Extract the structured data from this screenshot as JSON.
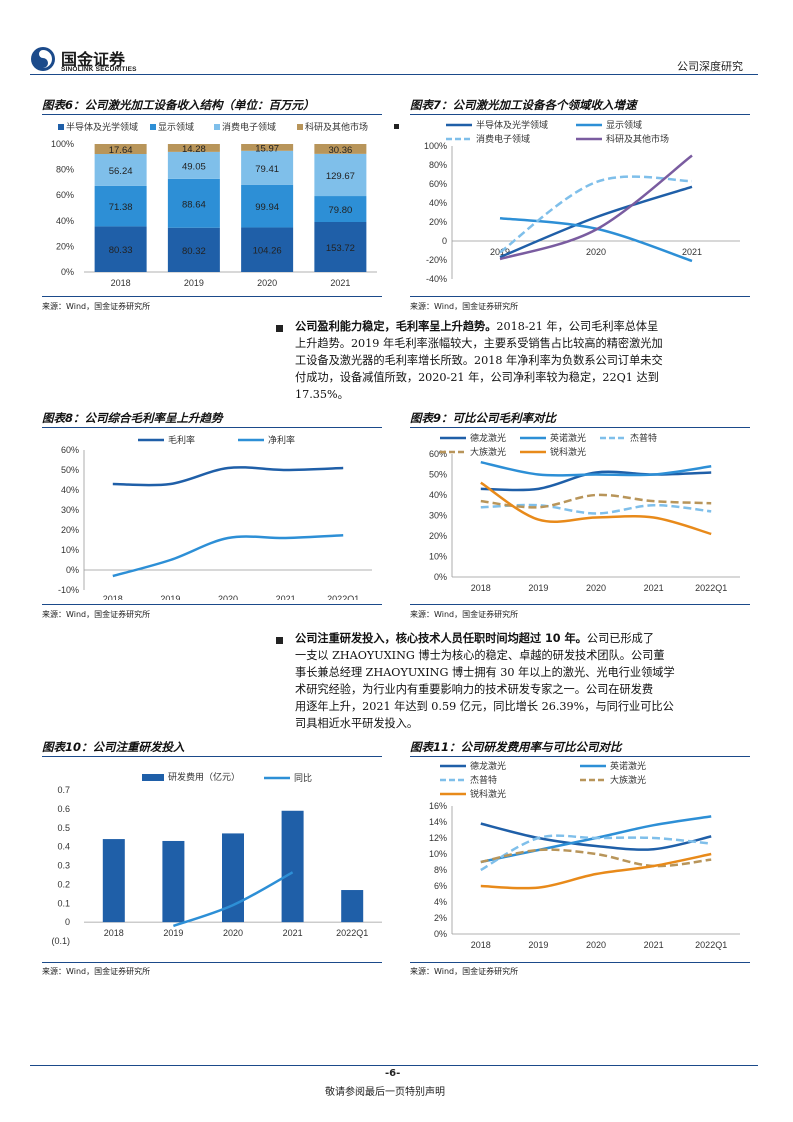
{
  "header": {
    "logo_cn": "国金证券",
    "logo_en": "SINOLINK SECURITIES",
    "doc_type": "公司深度研究"
  },
  "figures": {
    "fig6": {
      "title": "图表6：公司激光加工设备收入结构（单位：百万元）",
      "source": "来源：Wind，国金证券研究所"
    },
    "fig7": {
      "title": "图表7：公司激光加工设备各个领域收入增速",
      "source": "来源：Wind，国金证券研究所"
    },
    "fig8": {
      "title": "图表8：公司综合毛利率呈上升趋势",
      "source": "来源：Wind，国金证券研究所"
    },
    "fig9": {
      "title": "图表9：可比公司毛利率对比",
      "source": "来源：Wind，国金证券研究所"
    },
    "fig10": {
      "title": "图表10：公司注重研发投入",
      "source": "来源：Wind，国金证券研究所"
    },
    "fig11": {
      "title": "图表11：公司研发费用率与可比公司对比",
      "source": "来源：Wind，国金证券研究所"
    }
  },
  "paragraphs": {
    "p1_bold": "公司盈利能力稳定，毛利率呈上升趋势。",
    "p1_lines": [
      "2018-21 年，公司毛利率总体呈",
      "上升趋势。2019 年毛利率涨幅较大，主要系受销售占比较高的精密激光加",
      "工设备及激光器的毛利率增长所致。2018 年净利率为负数系公司订单未交",
      "付成功，设备减值所致，2020-21 年，公司净利率较为稳定，22Q1 达到",
      "17.35%。"
    ],
    "p2_bold": "公司注重研发投入，核心技术人员任职时间均超过 10 年。",
    "p2_lines": [
      "公司已形成了",
      "一支以 ZHAOYUXING 博士为核心的稳定、卓越的研发技术团队。公司董",
      "事长兼总经理 ZHAOYUXING 博士拥有 30 年以上的激光、光电行业领域学",
      "术研究经验，为行业内有重要影响力的技术研发专家之一。公司在研发费",
      "用逐年上升，2021 年达到 0.59 亿元，同比增长 26.39%，与同行业可比公",
      "司具相近水平研发投入。"
    ]
  },
  "footer": {
    "page": "-6-",
    "note": "敬请参阅最后一页特别声明"
  },
  "colors": {
    "brand_blue": "#1b4a8a",
    "dark_blue": "#1f5fa8",
    "mid_blue": "#2d8fd6",
    "light_blue": "#7fbfea",
    "tan": "#b8955a",
    "purple": "#7a5ca0",
    "orange": "#e88a1a"
  },
  "chart_data": [
    {
      "id": "fig6",
      "type": "bar",
      "stacked": true,
      "categories": [
        "2018",
        "2019",
        "2020",
        "2021"
      ],
      "series": [
        {
          "name": "半导体及光学领域",
          "values": [
            80.33,
            80.32,
            104.26,
            153.72
          ],
          "color": "#1f5fa8"
        },
        {
          "name": "显示领域",
          "values": [
            71.38,
            88.64,
            99.94,
            79.8
          ],
          "color": "#2d8fd6"
        },
        {
          "name": "消费电子领域",
          "values": [
            56.24,
            49.05,
            79.41,
            129.67
          ],
          "color": "#7fbfea"
        },
        {
          "name": "科研及其他市场",
          "values": [
            17.64,
            14.28,
            15.97,
            30.36
          ],
          "color": "#b8955a"
        }
      ],
      "yticks": [
        "0%",
        "20%",
        "40%",
        "60%",
        "80%",
        "100%"
      ],
      "legend_position": "top"
    },
    {
      "id": "fig7",
      "type": "line",
      "categories": [
        "2019",
        "2020",
        "2021"
      ],
      "series": [
        {
          "name": "半导体及光学领域",
          "values": [
            -0.17,
            0.25,
            0.57
          ],
          "color": "#1f5fa8",
          "dash": false
        },
        {
          "name": "显示领域",
          "values": [
            0.24,
            0.13,
            -0.21
          ],
          "color": "#2d8fd6",
          "dash": false
        },
        {
          "name": "消费电子领域",
          "values": [
            -0.12,
            0.62,
            0.63
          ],
          "color": "#7fbfea",
          "dash": true
        },
        {
          "name": "科研及其他市场",
          "values": [
            -0.19,
            0.12,
            0.9
          ],
          "color": "#7a5ca0",
          "dash": false
        }
      ],
      "ylim": [
        -0.4,
        1.0
      ],
      "yticks": [
        "-40%",
        "-20%",
        "0",
        "20%",
        "40%",
        "60%",
        "80%",
        "100%"
      ],
      "legend_position": "top"
    },
    {
      "id": "fig8",
      "type": "line",
      "categories": [
        "2018",
        "2019",
        "2020",
        "2021",
        "2022Q1"
      ],
      "series": [
        {
          "name": "毛利率",
          "values": [
            0.43,
            0.43,
            0.51,
            0.5,
            0.51
          ],
          "color": "#1f5fa8",
          "dash": false
        },
        {
          "name": "净利率",
          "values": [
            -0.03,
            0.05,
            0.16,
            0.16,
            0.1735
          ],
          "color": "#2d8fd6",
          "dash": false
        }
      ],
      "ylim": [
        -0.1,
        0.6
      ],
      "yticks": [
        "-10%",
        "0%",
        "10%",
        "20%",
        "30%",
        "40%",
        "50%",
        "60%"
      ],
      "legend_position": "top"
    },
    {
      "id": "fig9",
      "type": "line",
      "categories": [
        "2018",
        "2019",
        "2020",
        "2021",
        "2022Q1"
      ],
      "series": [
        {
          "name": "德龙激光",
          "values": [
            0.43,
            0.43,
            0.51,
            0.5,
            0.51
          ],
          "color": "#1f5fa8",
          "dash": false
        },
        {
          "name": "英诺激光",
          "values": [
            0.56,
            0.5,
            0.5,
            0.5,
            0.54
          ],
          "color": "#2d8fd6",
          "dash": false
        },
        {
          "name": "杰普特",
          "values": [
            0.34,
            0.35,
            0.31,
            0.35,
            0.32
          ],
          "color": "#7fbfea",
          "dash": true
        },
        {
          "name": "大族激光",
          "values": [
            0.37,
            0.34,
            0.4,
            0.37,
            0.36
          ],
          "color": "#b8955a",
          "dash": true
        },
        {
          "name": "锐科激光",
          "values": [
            0.46,
            0.28,
            0.29,
            0.29,
            0.21
          ],
          "color": "#e88a1a",
          "dash": false
        }
      ],
      "ylim": [
        0,
        0.6
      ],
      "yticks": [
        "0%",
        "10%",
        "20%",
        "30%",
        "40%",
        "50%",
        "60%"
      ],
      "legend_position": "top"
    },
    {
      "id": "fig10",
      "type": "bar",
      "categories": [
        "2018",
        "2019",
        "2020",
        "2021",
        "2022Q1"
      ],
      "series": [
        {
          "name": "研发费用（亿元）",
          "type": "bar",
          "values": [
            0.44,
            0.43,
            0.47,
            0.59,
            0.17
          ],
          "color": "#1f5fa8"
        },
        {
          "name": "同比",
          "type": "line",
          "values": [
            null,
            -0.02,
            0.09,
            0.2639,
            null
          ],
          "color": "#2d8fd6"
        }
      ],
      "ylim": [
        -0.1,
        0.7
      ],
      "yticks": [
        "(0.1)",
        "0",
        "0.1",
        "0.2",
        "0.3",
        "0.4",
        "0.5",
        "0.6",
        "0.7"
      ],
      "legend_position": "top"
    },
    {
      "id": "fig11",
      "type": "line",
      "categories": [
        "2018",
        "2019",
        "2020",
        "2021",
        "2022Q1"
      ],
      "series": [
        {
          "name": "德龙激光",
          "values": [
            0.138,
            0.12,
            0.11,
            0.106,
            0.122
          ],
          "color": "#1f5fa8",
          "dash": false
        },
        {
          "name": "英诺激光",
          "values": [
            0.09,
            0.105,
            0.12,
            0.136,
            0.147
          ],
          "color": "#2d8fd6",
          "dash": false
        },
        {
          "name": "杰普特",
          "values": [
            0.08,
            0.12,
            0.12,
            0.12,
            0.113
          ],
          "color": "#7fbfea",
          "dash": true
        },
        {
          "name": "大族激光",
          "values": [
            0.09,
            0.105,
            0.1,
            0.085,
            0.093
          ],
          "color": "#b8955a",
          "dash": true
        },
        {
          "name": "锐科激光",
          "values": [
            0.06,
            0.058,
            0.075,
            0.085,
            0.1
          ],
          "color": "#e88a1a",
          "dash": false
        }
      ],
      "ylim": [
        0,
        0.16
      ],
      "yticks": [
        "0%",
        "2%",
        "4%",
        "6%",
        "8%",
        "10%",
        "12%",
        "14%",
        "16%"
      ],
      "legend_position": "top"
    }
  ]
}
